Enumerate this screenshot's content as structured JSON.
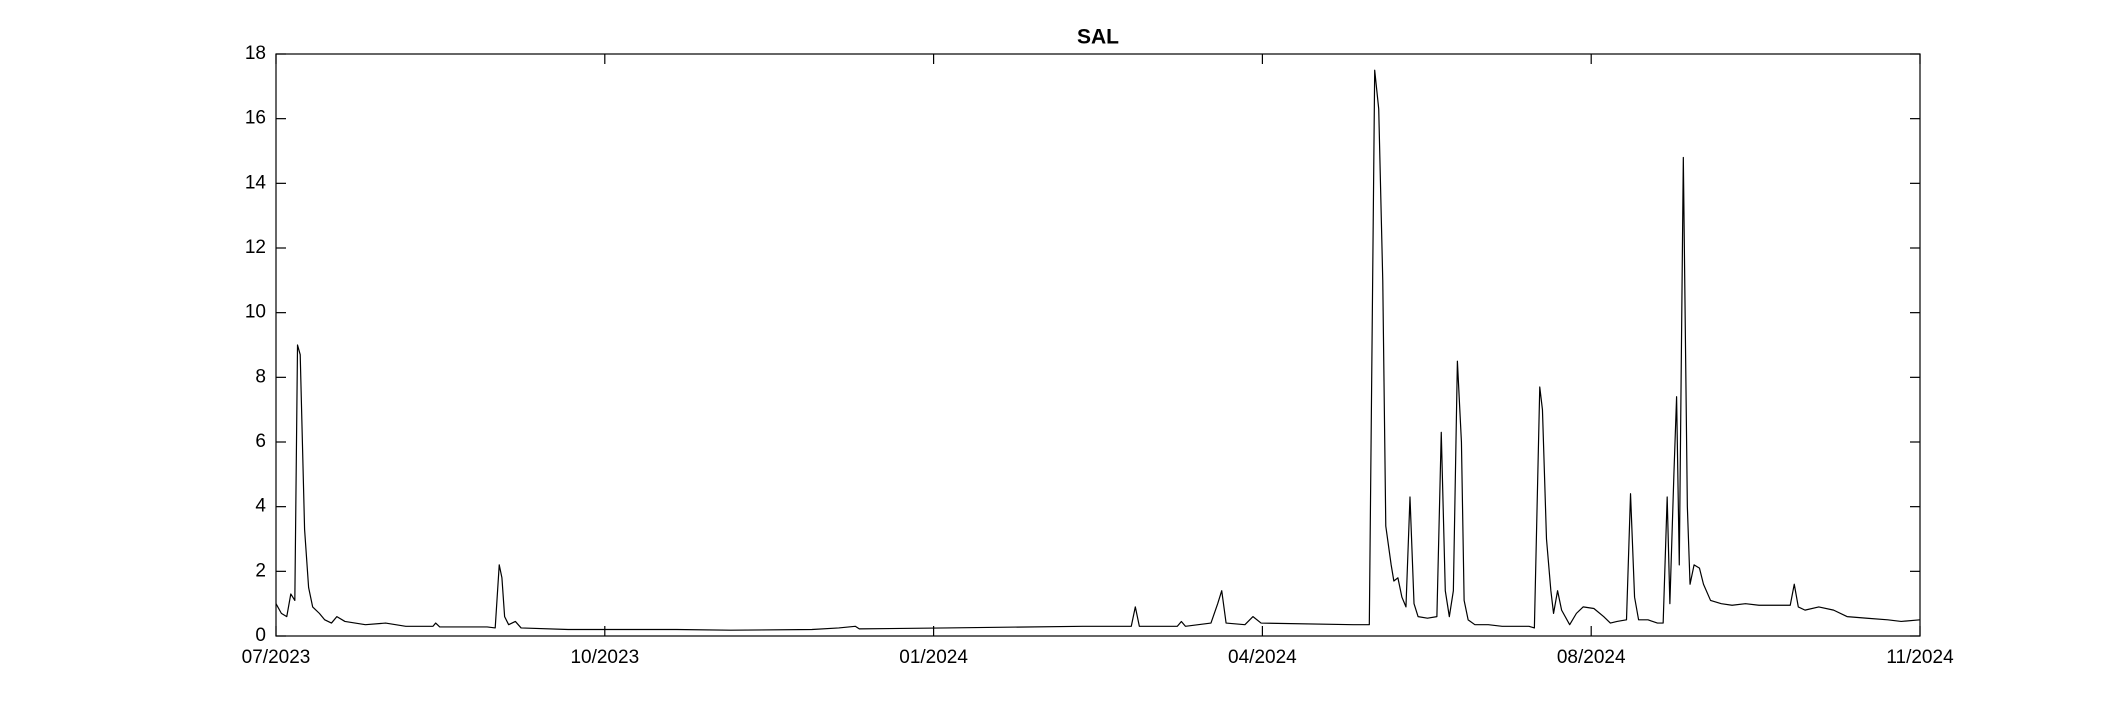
{
  "chart_data": {
    "type": "line",
    "title": "SAL",
    "x": [
      0,
      1.6,
      3.2,
      4.4,
      5.6,
      6.4,
      7.2,
      8.5,
      9.7,
      10.9,
      12.9,
      14.5,
      16.5,
      18.1,
      20.5,
      26.6,
      32.6,
      38.6,
      46.7,
      47.5,
      48.7,
      62.8,
      65.2,
      66.4,
      67.2,
      68.0,
      69.2,
      71.2,
      72.9,
      86.9,
      119.1,
      135.2,
      159.4,
      167.4,
      172.3,
      173.5,
      199.6,
      239.9,
      254.4,
      255.6,
      256.8,
      268.1,
      269.3,
      270.5,
      278.1,
      280.1,
      281.3,
      282.6,
      288.2,
      290.6,
      293.0,
      320.4,
      325.2,
      326.8,
      328.0,
      329.2,
      330.1,
      331.7,
      332.5,
      333.7,
      334.9,
      336.1,
      337.3,
      338.5,
      339.7,
      342.5,
      345.3,
      346.6,
      347.8,
      349.0,
      350.2,
      351.4,
      352.6,
      353.4,
      354.6,
      356.6,
      360.6,
      364.7,
      372.7,
      374.3,
      375.9,
      376.7,
      377.9,
      379.2,
      380.0,
      381.2,
      382.4,
      384.8,
      386.8,
      388.8,
      392.0,
      394.9,
      396.9,
      398.9,
      401.7,
      402.9,
      404.1,
      405.3,
      408.1,
      410.9,
      412.6,
      413.8,
      414.6,
      415.8,
      416.6,
      417.4,
      418.6,
      419.8,
      420.6,
      421.8,
      423.4,
      424.6,
      426.7,
      429.9,
      433.1,
      437.1,
      441.1,
      447.2,
      450.4,
      451.6,
      452.8,
      454.8,
      458.9,
      463.3,
      467.3,
      473.3,
      479.4,
      483.4,
      489.0
    ],
    "series": [
      {
        "name": "SAL",
        "color": "#000000",
        "values": [
          1.0,
          0.7,
          0.6,
          1.3,
          1.1,
          9.0,
          8.7,
          3.3,
          1.5,
          0.9,
          0.7,
          0.5,
          0.4,
          0.6,
          0.45,
          0.35,
          0.4,
          0.3,
          0.3,
          0.4,
          0.28,
          0.28,
          0.25,
          2.2,
          1.8,
          0.6,
          0.35,
          0.45,
          0.25,
          0.2,
          0.2,
          0.18,
          0.2,
          0.25,
          0.3,
          0.22,
          0.25,
          0.3,
          0.3,
          0.9,
          0.3,
          0.3,
          0.45,
          0.3,
          0.4,
          1.0,
          1.4,
          0.4,
          0.35,
          0.6,
          0.4,
          0.35,
          0.35,
          17.5,
          16.3,
          11,
          3.4,
          2.2,
          1.7,
          1.8,
          1.2,
          0.9,
          4.3,
          1.0,
          0.6,
          0.55,
          0.6,
          6.3,
          1.4,
          0.6,
          1.4,
          8.5,
          6,
          1.1,
          0.5,
          0.35,
          0.35,
          0.3,
          0.3,
          0.25,
          7.7,
          7.0,
          3,
          1.4,
          0.7,
          1.4,
          0.8,
          0.35,
          0.7,
          0.9,
          0.85,
          0.6,
          0.4,
          0.45,
          0.5,
          4.4,
          1.2,
          0.5,
          0.5,
          0.4,
          0.4,
          4.3,
          1.0,
          5,
          7.4,
          2.2,
          14.8,
          4,
          1.6,
          2.2,
          2.1,
          1.6,
          1.1,
          1.0,
          0.95,
          1.0,
          0.95,
          0.95,
          0.95,
          1.6,
          0.9,
          0.8,
          0.9,
          0.8,
          0.6,
          0.55,
          0.5,
          0.45,
          0.5
        ]
      }
    ],
    "xlim": [
      0,
      489
    ],
    "xticks": [
      {
        "value": 0,
        "label": "07/2023"
      },
      {
        "value": 97.8,
        "label": "10/2023"
      },
      {
        "value": 195.6,
        "label": "01/2024"
      },
      {
        "value": 293.4,
        "label": "04/2024"
      },
      {
        "value": 391.2,
        "label": "08/2024"
      },
      {
        "value": 489,
        "label": "11/2024"
      }
    ],
    "ylim": [
      0,
      18
    ],
    "yticks": [
      0,
      2,
      4,
      6,
      8,
      10,
      12,
      14,
      16,
      18
    ],
    "grid": false
  }
}
